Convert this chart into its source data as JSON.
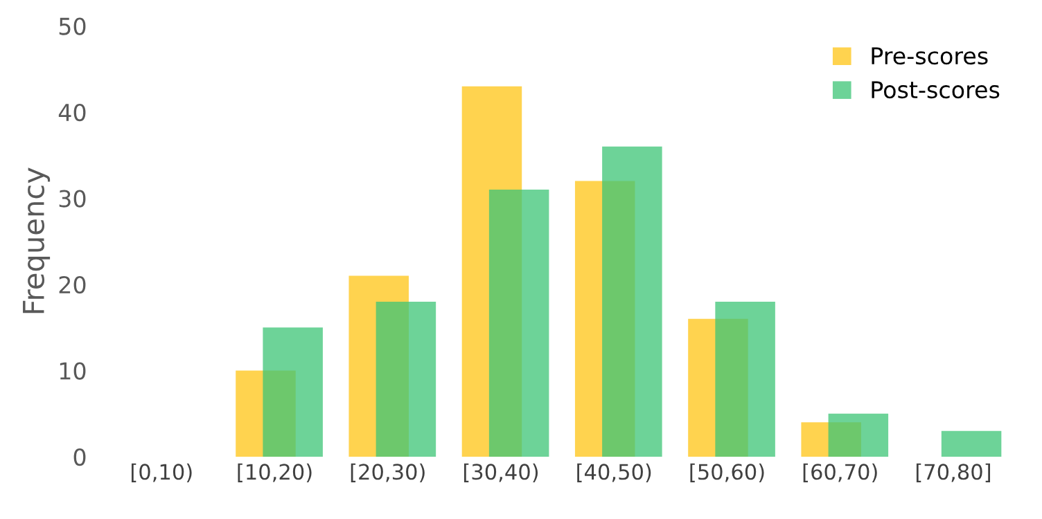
{
  "chart_data": {
    "type": "bar",
    "ylabel": "Frequency",
    "categories": [
      "[0,10)",
      "[10,20)",
      "[20,30)",
      "[30,40)",
      "[40,50)",
      "[50,60)",
      "[60,70)",
      "[70,80]"
    ],
    "series": [
      {
        "name": "Pre-scores",
        "color": "#ffd34f",
        "values": [
          0,
          10,
          21,
          43,
          32,
          16,
          4,
          0
        ]
      },
      {
        "name": "Post-scores",
        "color": "#3cc475",
        "values": [
          0,
          15,
          18,
          31,
          36,
          18,
          5,
          3
        ]
      }
    ],
    "ylim": [
      0,
      50
    ],
    "yticks": [
      0,
      10,
      20,
      30,
      40,
      50
    ],
    "grid": false,
    "legend": "top right"
  }
}
